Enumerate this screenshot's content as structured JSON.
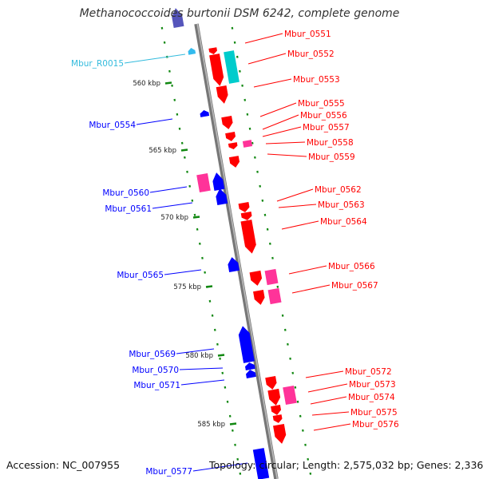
{
  "title": "Methanococcoides burtonii DSM 6242, complete genome",
  "footer": {
    "accession": "Accession: NC_007955",
    "summary": "Topology: circular; Length: 2,575,032 bp; Genes: 2,336"
  },
  "colors": {
    "forward_cds": "#ff0000",
    "reverse_cds": "#0000ff",
    "rna": "#00cccc",
    "rna_label": "#33bbdd",
    "overlap": "#ff3399",
    "backbone": "#888888",
    "dots": "#118811"
  },
  "scale": [
    {
      "label": "560 kbp"
    },
    {
      "label": "565 kbp"
    },
    {
      "label": "570 kbp"
    },
    {
      "label": "575 kbp"
    },
    {
      "label": "580 kbp"
    },
    {
      "label": "585 kbp"
    }
  ],
  "genes_right": [
    {
      "label": "Mbur_0551"
    },
    {
      "label": "Mbur_0552"
    },
    {
      "label": "Mbur_0553"
    },
    {
      "label": "Mbur_0555"
    },
    {
      "label": "Mbur_0556"
    },
    {
      "label": "Mbur_0557"
    },
    {
      "label": "Mbur_0558"
    },
    {
      "label": "Mbur_0559"
    },
    {
      "label": "Mbur_0562"
    },
    {
      "label": "Mbur_0563"
    },
    {
      "label": "Mbur_0564"
    },
    {
      "label": "Mbur_0566"
    },
    {
      "label": "Mbur_0567"
    },
    {
      "label": "Mbur_0572"
    },
    {
      "label": "Mbur_0573"
    },
    {
      "label": "Mbur_0574"
    },
    {
      "label": "Mbur_0575"
    },
    {
      "label": "Mbur_0576"
    }
  ],
  "genes_left": [
    {
      "label": "Mbur_R0015",
      "kind": "rna"
    },
    {
      "label": "Mbur_0554",
      "kind": "cds"
    },
    {
      "label": "Mbur_0560",
      "kind": "cds"
    },
    {
      "label": "Mbur_0561",
      "kind": "cds"
    },
    {
      "label": "Mbur_0565",
      "kind": "cds"
    },
    {
      "label": "Mbur_0569",
      "kind": "cds"
    },
    {
      "label": "Mbur_0570",
      "kind": "cds"
    },
    {
      "label": "Mbur_0571",
      "kind": "cds"
    },
    {
      "label": "Mbur_0577",
      "kind": "cds"
    }
  ]
}
